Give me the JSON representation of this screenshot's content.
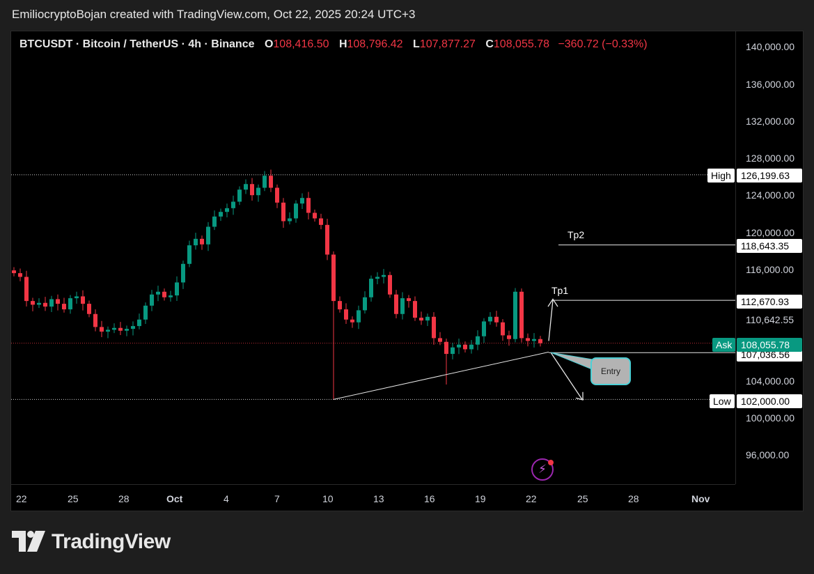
{
  "header": {
    "title": "EmiliocryptoBojan created with TradingView.com, Oct 22, 2025 20:24 UTC+3"
  },
  "legend": {
    "symbol": "BTCUSDT · Bitcoin / TetherUS · 4h · Binance",
    "open_key": "O",
    "open": "108,416.50",
    "high_key": "H",
    "high": "108,796.42",
    "low_key": "L",
    "low": "107,877.27",
    "close_key": "C",
    "close": "108,055.78",
    "change": "−360.72 (−0.33%)"
  },
  "price_axis": {
    "ticks": [
      "140,000.00",
      "136,000.00",
      "132,000.00",
      "128,000.00",
      "124,000.00",
      "120,000.00",
      "116,000.00",
      "110,642.55",
      "104,000.00",
      "100,000.00",
      "96,000.00"
    ],
    "tags": {
      "high_label": "High",
      "high_value": "126,199.63",
      "tp2_value": "118,643.35",
      "tp1_value": "112,670.93",
      "ask_label": "Ask",
      "ask_value": "108,055.78",
      "entry_value": "107,036.56",
      "low_label": "Low",
      "low_value": "102,000.00"
    }
  },
  "time_axis": {
    "labels": [
      "22",
      "25",
      "28",
      "Oct",
      "4",
      "7",
      "10",
      "13",
      "16",
      "19",
      "22",
      "25",
      "28",
      "Nov"
    ]
  },
  "annotations": {
    "tp1": "Tp1",
    "tp2": "Tp2",
    "entry": "Entry"
  },
  "colors": {
    "up": "#089981",
    "down": "#f23645",
    "background": "#000000"
  },
  "footer": {
    "brand": "TradingView"
  },
  "chart_data": {
    "type": "candlestick",
    "interval": "4h",
    "ylim": [
      93000,
      141000
    ],
    "y_ticks": [
      96000,
      100000,
      104000,
      110642.55,
      116000,
      120000,
      124000,
      128000,
      132000,
      136000,
      140000
    ],
    "x_axis_labels": [
      "22",
      "25",
      "28",
      "Oct",
      "4",
      "7",
      "10",
      "13",
      "16",
      "19",
      "22",
      "25",
      "28",
      "Nov"
    ],
    "levels": [
      {
        "label": "High",
        "value": 126199.63
      },
      {
        "label": "Tp2",
        "value": 118643.35
      },
      {
        "label": "Tp1",
        "value": 112670.93
      },
      {
        "label": "Ask",
        "value": 108055.78
      },
      {
        "label": "Entry",
        "value": 107036.56
      },
      {
        "label": "Low",
        "value": 102000.0
      }
    ],
    "close_path": [
      [
        0,
        115600
      ],
      [
        1,
        115200
      ],
      [
        2,
        112600
      ],
      [
        3,
        112200
      ],
      [
        4,
        112400
      ],
      [
        5,
        112000
      ],
      [
        6,
        112800
      ],
      [
        7,
        112300
      ],
      [
        8,
        111700
      ],
      [
        9,
        112900
      ],
      [
        10,
        113100
      ],
      [
        11,
        112300
      ],
      [
        12,
        111200
      ],
      [
        13,
        109800
      ],
      [
        14,
        109300
      ],
      [
        15,
        109500
      ],
      [
        16,
        109700
      ],
      [
        17,
        109400
      ],
      [
        18,
        109600
      ],
      [
        19,
        109900
      ],
      [
        20,
        110600
      ],
      [
        21,
        112100
      ],
      [
        22,
        113300
      ],
      [
        23,
        113600
      ],
      [
        24,
        113000
      ],
      [
        25,
        113200
      ],
      [
        26,
        114600
      ],
      [
        27,
        116600
      ],
      [
        28,
        118600
      ],
      [
        29,
        119300
      ],
      [
        30,
        118700
      ],
      [
        31,
        120600
      ],
      [
        32,
        121700
      ],
      [
        33,
        122200
      ],
      [
        34,
        122600
      ],
      [
        35,
        123300
      ],
      [
        36,
        124600
      ],
      [
        37,
        125200
      ],
      [
        38,
        124000
      ],
      [
        39,
        124800
      ],
      [
        40,
        126100
      ],
      [
        41,
        124800
      ],
      [
        42,
        123200
      ],
      [
        43,
        121200
      ],
      [
        44,
        121500
      ],
      [
        45,
        123100
      ],
      [
        46,
        123700
      ],
      [
        47,
        122100
      ],
      [
        48,
        121500
      ],
      [
        49,
        120800
      ],
      [
        50,
        117600
      ],
      [
        51,
        112600
      ],
      [
        52,
        111700
      ],
      [
        53,
        110600
      ],
      [
        54,
        110300
      ],
      [
        55,
        111600
      ],
      [
        56,
        113000
      ],
      [
        57,
        115000
      ],
      [
        58,
        115200
      ],
      [
        59,
        115400
      ],
      [
        60,
        113300
      ],
      [
        61,
        111200
      ],
      [
        62,
        112900
      ],
      [
        63,
        112600
      ],
      [
        64,
        110800
      ],
      [
        65,
        110500
      ],
      [
        66,
        110900
      ],
      [
        67,
        108600
      ],
      [
        68,
        108200
      ],
      [
        69,
        106900
      ],
      [
        70,
        107600
      ],
      [
        71,
        107900
      ],
      [
        72,
        107400
      ],
      [
        73,
        107900
      ],
      [
        74,
        108800
      ],
      [
        75,
        110400
      ],
      [
        76,
        110900
      ],
      [
        77,
        110300
      ],
      [
        78,
        108900
      ],
      [
        79,
        108500
      ],
      [
        80,
        113600
      ],
      [
        81,
        108600
      ],
      [
        82,
        108300
      ],
      [
        83,
        108500
      ],
      [
        84,
        108055.78
      ]
    ]
  }
}
